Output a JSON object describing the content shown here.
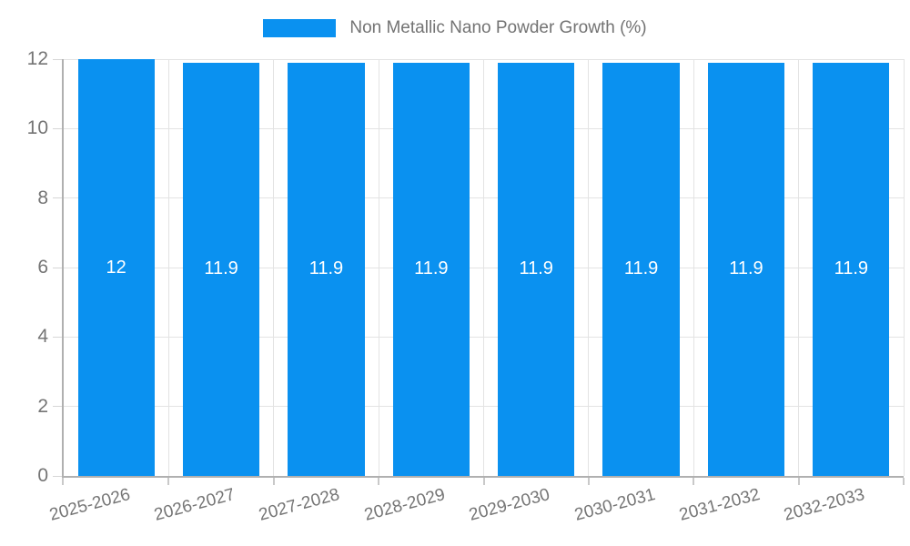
{
  "chart_data": {
    "type": "bar",
    "title": "",
    "legend_entries": [
      "Non Metallic Nano Powder Growth (%)"
    ],
    "legend_position": "top-center",
    "categories": [
      "2025-2026",
      "2026-2027",
      "2027-2028",
      "2028-2029",
      "2029-2030",
      "2030-2031",
      "2031-2032",
      "2032-2033"
    ],
    "series": [
      {
        "name": "Non Metallic Nano Powder Growth (%)",
        "values": [
          12,
          11.9,
          11.9,
          11.9,
          11.9,
          11.9,
          11.9,
          11.9
        ],
        "value_labels": [
          "12",
          "11.9",
          "11.9",
          "11.9",
          "11.9",
          "11.9",
          "11.9",
          "11.9"
        ]
      }
    ],
    "xlabel": "",
    "ylabel": "",
    "ylim": [
      0,
      12
    ],
    "yticks": [
      0,
      2,
      4,
      6,
      8,
      10,
      12
    ],
    "ytick_labels": [
      "0",
      "2",
      "4",
      "6",
      "8",
      "10",
      "12"
    ],
    "grid": true,
    "x_label_rotation_deg": -15,
    "colors": {
      "bar": "#0a91f0",
      "bar_value_text": "#ffffff",
      "axis_text": "#757575",
      "legend_text": "#737373",
      "gridline": "#e3e3e3",
      "axis_line": "#b0b0b0",
      "background": "#ffffff"
    }
  }
}
